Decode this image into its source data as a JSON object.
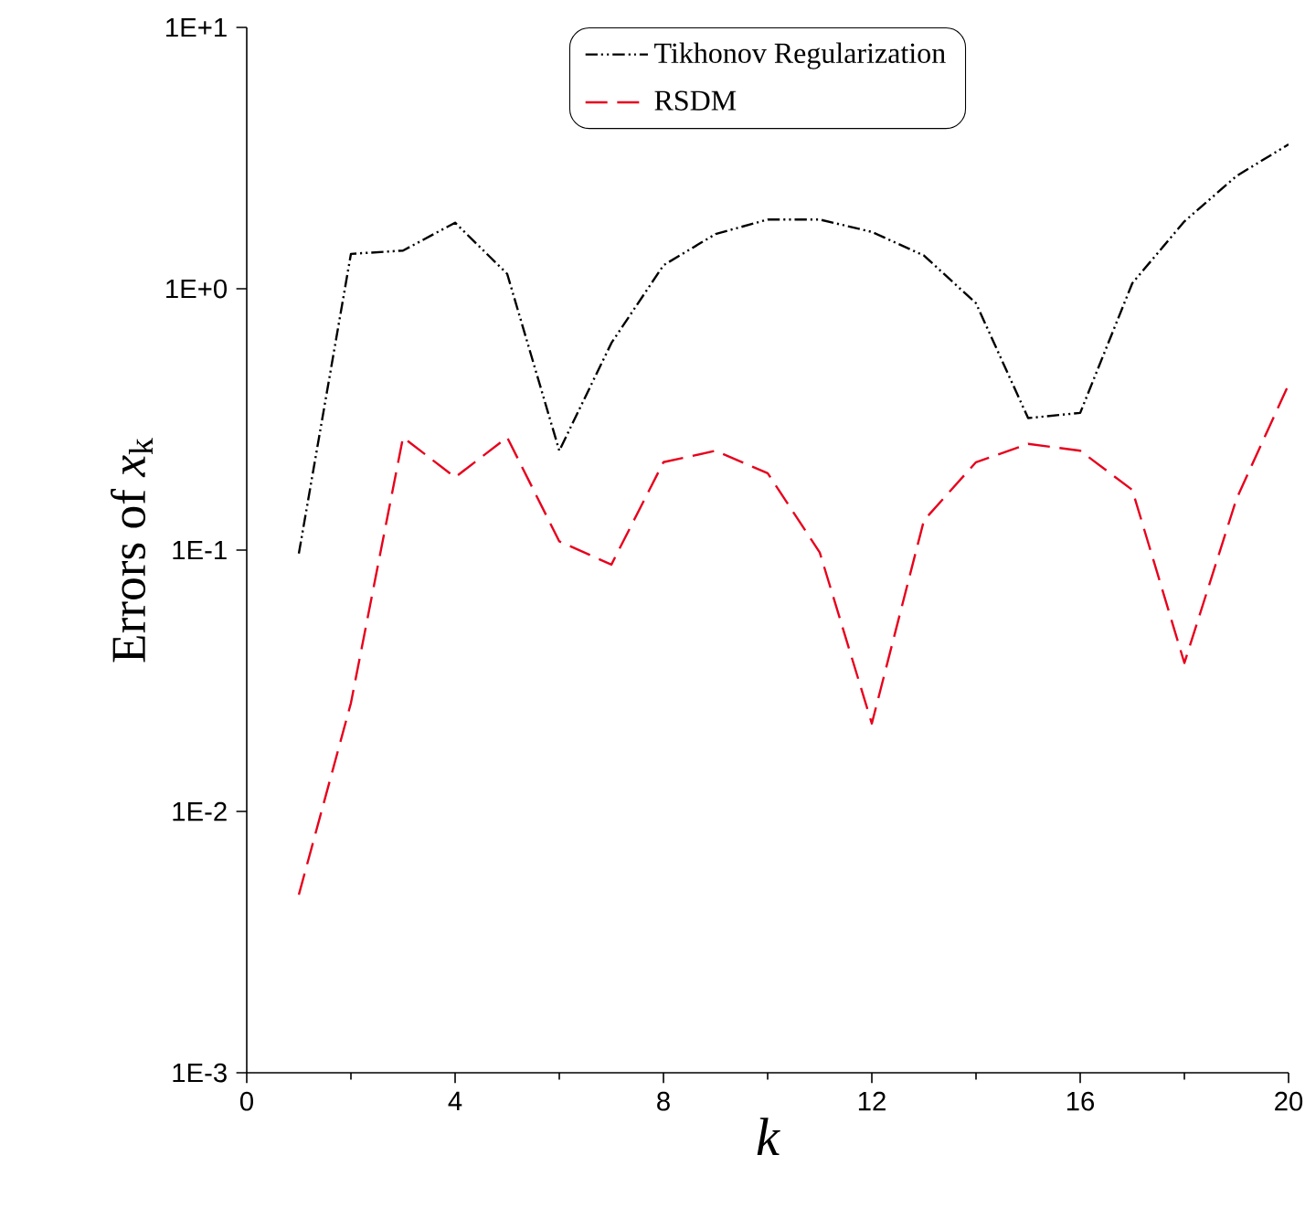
{
  "chart_data": {
    "type": "line",
    "xlabel": "k",
    "ylabel": "Errors of *x*$_{k}$",
    "log": "y",
    "legend": "top",
    "x": [
      1,
      2,
      3,
      4,
      5,
      6,
      7,
      8,
      9,
      10,
      11,
      12,
      13,
      14,
      15,
      16,
      17,
      18,
      19,
      20
    ],
    "xlim": [
      0,
      20
    ],
    "xticks": [
      0,
      4,
      8,
      12,
      16,
      20
    ],
    "ylim": [
      0.001,
      10
    ],
    "yticks": [
      {
        "value": 0.001,
        "label": "1E-3"
      },
      {
        "value": 0.01,
        "label": "1E-2"
      },
      {
        "value": 0.1,
        "label": "1E-1"
      },
      {
        "value": 1,
        "label": "1E+0"
      },
      {
        "value": 10,
        "label": "1E+1"
      }
    ],
    "series": [
      {
        "name": "Tikhonov Regularization",
        "color": "#000000",
        "line_style": "dashdot",
        "values": [
          0.097,
          1.36,
          1.4,
          1.79,
          1.14,
          0.24,
          0.62,
          1.23,
          1.62,
          1.84,
          1.84,
          1.65,
          1.34,
          0.88,
          0.32,
          0.335,
          1.05,
          1.81,
          2.7,
          3.57
        ]
      },
      {
        "name": "RSDM",
        "color": "#e8001c",
        "line_style": "dashed",
        "values": [
          0.0048,
          0.026,
          0.27,
          0.19,
          0.27,
          0.108,
          0.088,
          0.217,
          0.24,
          0.197,
          0.098,
          0.0217,
          0.13,
          0.217,
          0.255,
          0.24,
          0.17,
          0.037,
          0.157,
          0.43
        ]
      }
    ]
  }
}
